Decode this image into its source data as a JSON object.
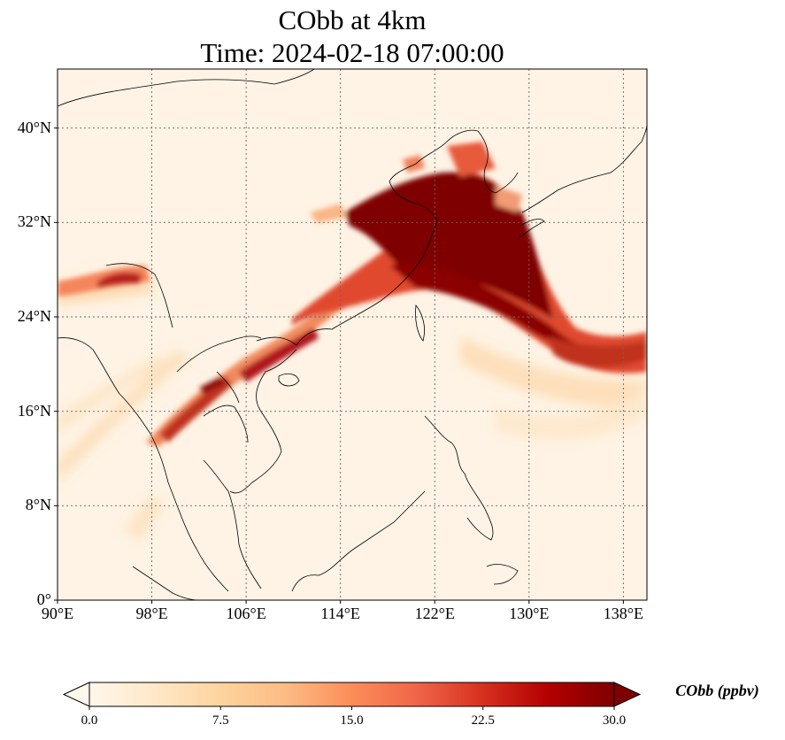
{
  "title": {
    "line1": "CObb at 4km",
    "line2": "Time: 2024-02-18 07:00:00"
  },
  "map": {
    "lon_range": [
      90,
      140
    ],
    "lat_range": [
      0,
      45
    ],
    "lon_ticks": [
      90,
      98,
      106,
      114,
      122,
      130,
      138
    ],
    "lat_ticks": [
      0,
      8,
      16,
      24,
      32,
      40
    ],
    "lon_tick_labels": [
      "90°E",
      "98°E",
      "106°E",
      "114°E",
      "122°E",
      "130°E",
      "138°E"
    ],
    "lat_tick_labels": [
      "0°",
      "8°N",
      "16°N",
      "24°N",
      "32°N",
      "40°N"
    ],
    "gridlines": true,
    "colormap": "OrRd",
    "colors": {
      "low": "#fff7ec",
      "mid": "#fc8d59",
      "high": "#7f0000"
    }
  },
  "colorbar": {
    "label": "CObb (ppbv)",
    "range": [
      0,
      30
    ],
    "extend": "both",
    "ticks": [
      0,
      7.5,
      15,
      22.5,
      30
    ],
    "tick_labels": [
      "0.0",
      "7.5",
      "15.0",
      "22.5",
      "30.0"
    ]
  }
}
